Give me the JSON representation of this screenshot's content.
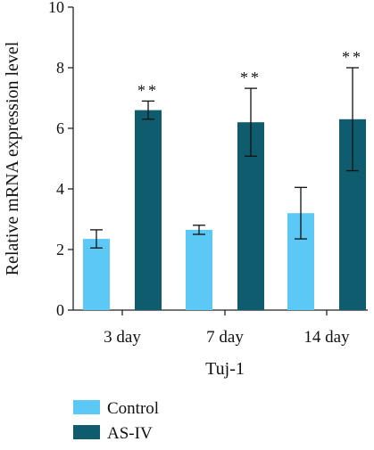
{
  "chart_data": {
    "type": "bar",
    "xlabel": "Tuj-1",
    "ylabel": "Relative mRNA expression level",
    "ylim": [
      0,
      10
    ],
    "yticks": [
      "0",
      "2",
      "4",
      "6",
      "8",
      "10"
    ],
    "categories": [
      "3 day",
      "7 day",
      "14 day"
    ],
    "grid": false,
    "legend_position": "bottom-left",
    "series": [
      {
        "name": "Control",
        "color": "#5bc8f5",
        "values": [
          2.35,
          2.65,
          3.2
        ],
        "error": [
          0.3,
          0.15,
          0.85
        ],
        "annotations": [
          "",
          "",
          ""
        ]
      },
      {
        "name": "AS-IV",
        "color": "#0f5c6e",
        "values": [
          6.6,
          6.2,
          6.3
        ],
        "error": [
          0.3,
          1.12,
          1.7
        ],
        "annotations": [
          "**",
          "**",
          "**"
        ]
      }
    ]
  }
}
